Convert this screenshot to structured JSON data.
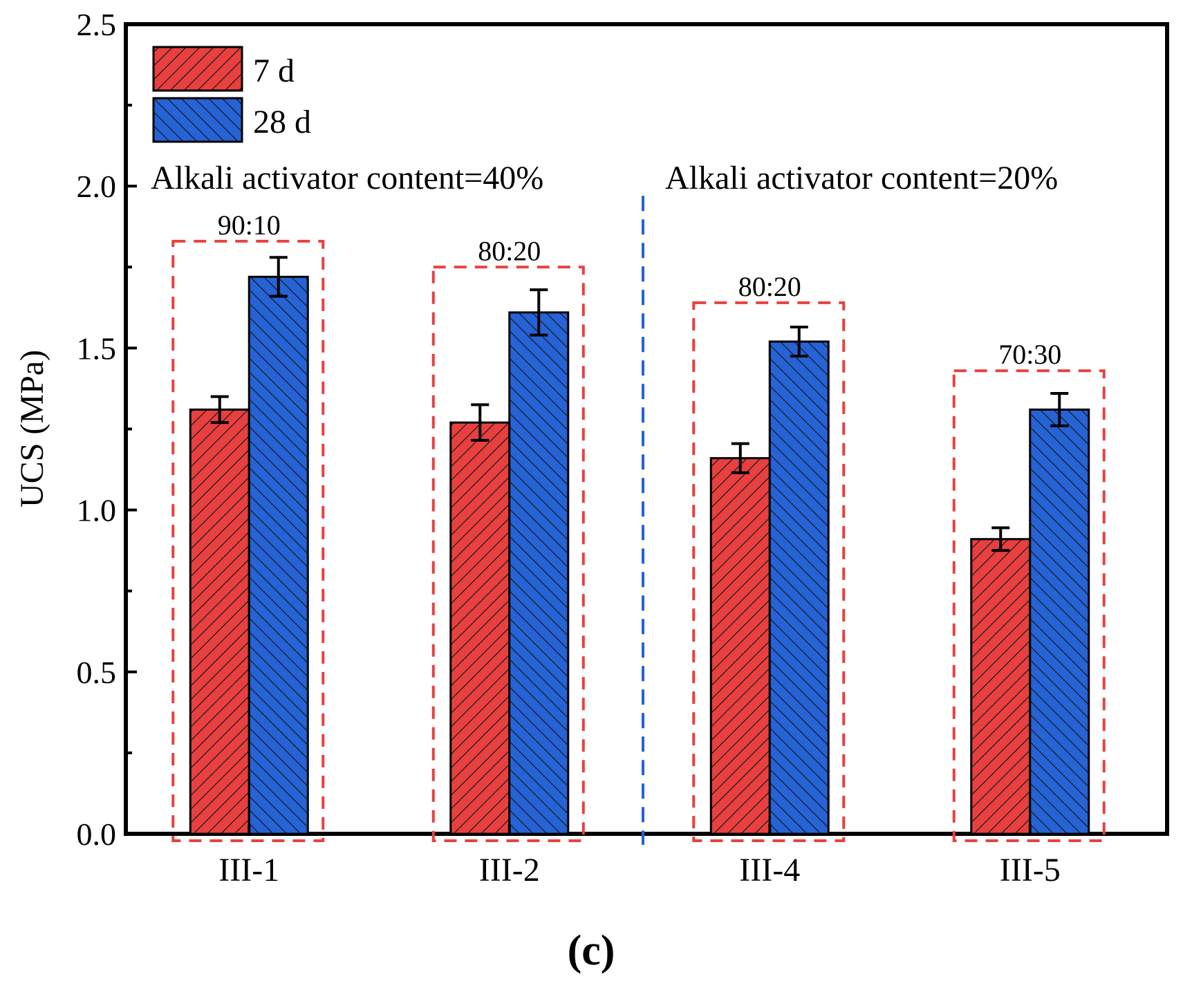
{
  "chart_data": {
    "type": "bar",
    "categories": [
      "III-1",
      "III-2",
      "III-4",
      "III-5"
    ],
    "series": [
      {
        "name": "7 d",
        "values": [
          1.31,
          1.27,
          1.16,
          0.91
        ],
        "errors": [
          0.04,
          0.055,
          0.045,
          0.035
        ],
        "color": "#e8403f",
        "hatch": "forward-diagonal"
      },
      {
        "name": "28 d",
        "values": [
          1.72,
          1.61,
          1.52,
          1.31
        ],
        "errors": [
          0.06,
          0.07,
          0.045,
          0.05
        ],
        "color": "#2563d6",
        "hatch": "backward-diagonal"
      }
    ],
    "ylabel": "UCS (MPa)",
    "xlabel": "",
    "ylim": [
      0,
      2.5
    ],
    "yticks": [
      "0.0",
      "0.5",
      "1.0",
      "1.5",
      "2.0",
      "2.5"
    ],
    "legend_position": "top-left",
    "grid": false,
    "group_annotations": [
      {
        "category": "III-1",
        "ratio": "90:10",
        "box_top": 1.83
      },
      {
        "category": "III-2",
        "ratio": "80:20",
        "box_top": 1.75
      },
      {
        "category": "III-4",
        "ratio": "80:20",
        "box_top": 1.64
      },
      {
        "category": "III-5",
        "ratio": "70:30",
        "box_top": 1.43
      }
    ],
    "region_labels": [
      "Alkali activator content=40%",
      "Alkali activator content=20%"
    ],
    "divider_color": "#2563d6",
    "box_color": "#e8403f",
    "panel_label": "(c)"
  }
}
